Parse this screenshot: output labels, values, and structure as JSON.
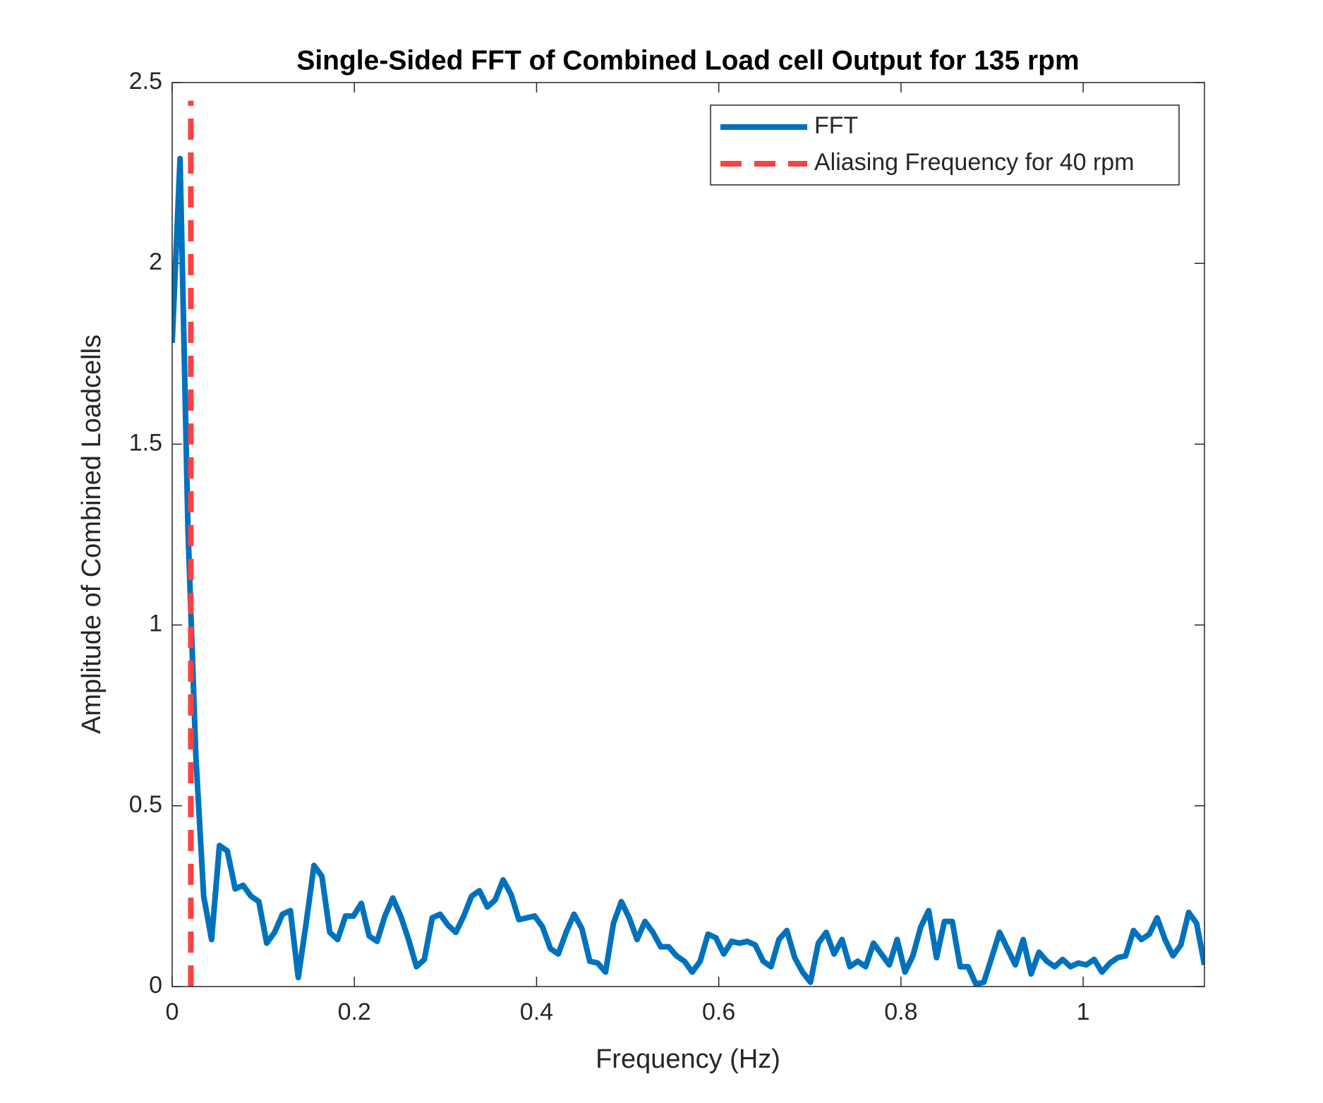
{
  "chart_data": {
    "type": "line",
    "title": "Single-Sided FFT of Combined Load cell Output for 135 rpm",
    "xlabel": "Frequency (Hz)",
    "ylabel": "Amplitude of Combined Loadcells",
    "xlim": [
      0,
      1.13315
    ],
    "ylim": [
      0,
      2.5
    ],
    "xticks": [
      0,
      0.2,
      0.4,
      0.6,
      0.8,
      1
    ],
    "yticks": [
      0,
      0.5,
      1,
      1.5,
      2,
      2.5
    ],
    "legend": "top-right",
    "series": [
      {
        "name": "FFT",
        "color": "#0072bd",
        "style": "solid",
        "x": [
          0,
          0.00865,
          0.0173,
          0.02595,
          0.0346,
          0.04325,
          0.0519,
          0.06055,
          0.0692,
          0.07785,
          0.0865,
          0.09515,
          0.1038,
          0.11245,
          0.1211,
          0.12975,
          0.1384,
          0.14705,
          0.1557,
          0.16435,
          0.173,
          0.18165,
          0.1903,
          0.19895,
          0.2076,
          0.21625,
          0.2249,
          0.23355,
          0.2422,
          0.25085,
          0.2595,
          0.26815,
          0.2768,
          0.28545,
          0.2941,
          0.30275,
          0.3114,
          0.32005,
          0.3287,
          0.33735,
          0.346,
          0.35465,
          0.3633,
          0.37195,
          0.3806,
          0.38925,
          0.3979,
          0.40655,
          0.4152,
          0.42385,
          0.4325,
          0.44115,
          0.4498,
          0.45845,
          0.4671,
          0.47575,
          0.4844,
          0.49305,
          0.5017,
          0.51035,
          0.519,
          0.52765,
          0.5363,
          0.54495,
          0.5536,
          0.56225,
          0.5709,
          0.57955,
          0.5882,
          0.59685,
          0.6055,
          0.61415,
          0.6228,
          0.63145,
          0.6401,
          0.64875,
          0.6574,
          0.66605,
          0.6747,
          0.68335,
          0.692,
          0.70065,
          0.7093,
          0.71795,
          0.7266,
          0.73525,
          0.7439,
          0.75255,
          0.7612,
          0.76985,
          0.7785,
          0.78715,
          0.7958,
          0.80445,
          0.8131,
          0.82175,
          0.8304,
          0.83905,
          0.8477,
          0.85635,
          0.865,
          0.87365,
          0.8823,
          0.89095,
          0.8996,
          0.90825,
          0.9169,
          0.92555,
          0.9342,
          0.94285,
          0.9515,
          0.96015,
          0.9688,
          0.97745,
          0.9861,
          0.99475,
          1.0034,
          1.01205,
          1.0207,
          1.02935,
          1.038,
          1.04665,
          1.0553,
          1.06395,
          1.0726,
          1.08125,
          1.0899,
          1.09855,
          1.1072,
          1.11585,
          1.1245,
          1.13315
        ],
        "values": [
          1.78,
          2.29,
          1.27,
          0.64,
          0.25,
          0.13,
          0.39,
          0.375,
          0.27,
          0.28,
          0.25,
          0.235,
          0.12,
          0.15,
          0.2,
          0.21,
          0.025,
          0.175,
          0.335,
          0.305,
          0.15,
          0.13,
          0.195,
          0.195,
          0.23,
          0.14,
          0.125,
          0.195,
          0.245,
          0.195,
          0.13,
          0.055,
          0.075,
          0.19,
          0.2,
          0.17,
          0.15,
          0.195,
          0.25,
          0.265,
          0.22,
          0.24,
          0.295,
          0.255,
          0.185,
          0.19,
          0.195,
          0.165,
          0.105,
          0.09,
          0.15,
          0.2,
          0.16,
          0.07,
          0.065,
          0.04,
          0.175,
          0.235,
          0.19,
          0.13,
          0.18,
          0.15,
          0.11,
          0.11,
          0.085,
          0.07,
          0.04,
          0.07,
          0.145,
          0.135,
          0.09,
          0.125,
          0.12,
          0.125,
          0.115,
          0.07,
          0.055,
          0.13,
          0.155,
          0.08,
          0.04,
          0.012,
          0.12,
          0.15,
          0.09,
          0.13,
          0.055,
          0.07,
          0.055,
          0.12,
          0.09,
          0.06,
          0.13,
          0.04,
          0.085,
          0.165,
          0.21,
          0.08,
          0.18,
          0.18,
          0.055,
          0.055,
          0.007,
          0.012,
          0.08,
          0.15,
          0.105,
          0.06,
          0.13,
          0.035,
          0.095,
          0.07,
          0.055,
          0.075,
          0.055,
          0.065,
          0.06,
          0.075,
          0.04,
          0.065,
          0.08,
          0.085,
          0.155,
          0.13,
          0.145,
          0.19,
          0.13,
          0.085,
          0.115,
          0.205,
          0.175,
          0.06
        ]
      },
      {
        "name": "Aliasing Frequency for 40 rpm",
        "color": "#ff4040",
        "style": "dashed",
        "x": [
          0.0205,
          0.0205
        ],
        "values": [
          0,
          2.45
        ]
      }
    ]
  }
}
